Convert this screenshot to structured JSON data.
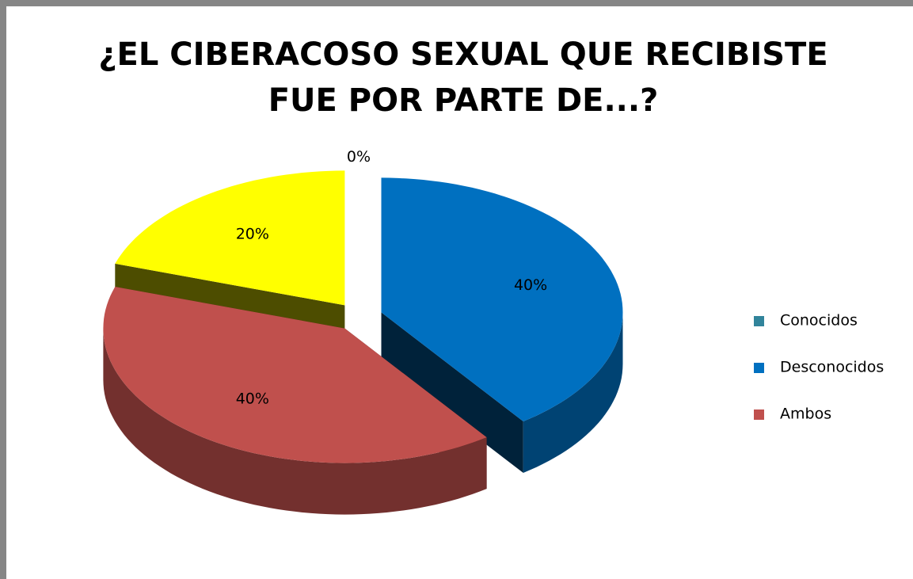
{
  "chart_data": {
    "type": "pie",
    "title": "¿EL CIBERACOSO SEXUAL QUE RECIBISTE FUE POR PARTE DE...?",
    "categories": [
      "Conocidos",
      "Desconocidos",
      "Ambos",
      null
    ],
    "values": [
      0,
      40,
      40,
      20
    ],
    "value_labels": [
      "0%",
      "40%",
      "40%",
      "20%"
    ],
    "colors": [
      "#31849b",
      "#0070c0",
      "#c0504d",
      "#ffff00"
    ],
    "legend": "right"
  }
}
